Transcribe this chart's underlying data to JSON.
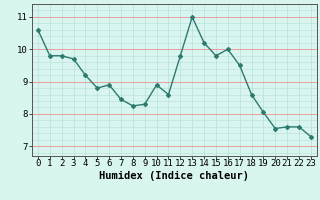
{
  "x": [
    0,
    1,
    2,
    3,
    4,
    5,
    6,
    7,
    8,
    9,
    10,
    11,
    12,
    13,
    14,
    15,
    16,
    17,
    18,
    19,
    20,
    21,
    22,
    23
  ],
  "y": [
    10.6,
    9.8,
    9.8,
    9.7,
    9.2,
    8.8,
    8.9,
    8.45,
    8.25,
    8.3,
    8.9,
    8.6,
    9.8,
    11.0,
    10.2,
    9.8,
    10.0,
    9.5,
    8.6,
    8.05,
    7.55,
    7.6,
    7.6,
    7.3
  ],
  "line_color": "#2d7a6e",
  "marker": "D",
  "marker_size": 2.0,
  "bg_color": "#d9f5f0",
  "grid_color_major": "#e89090",
  "grid_color_minor": "#b8deda",
  "xlabel": "Humidex (Indice chaleur)",
  "xlim": [
    -0.5,
    23.5
  ],
  "ylim": [
    6.7,
    11.4
  ],
  "yticks": [
    7,
    8,
    9,
    10,
    11
  ],
  "xticks": [
    0,
    1,
    2,
    3,
    4,
    5,
    6,
    7,
    8,
    9,
    10,
    11,
    12,
    13,
    14,
    15,
    16,
    17,
    18,
    19,
    20,
    21,
    22,
    23
  ],
  "tick_fontsize": 6.5,
  "label_fontsize": 7.5
}
